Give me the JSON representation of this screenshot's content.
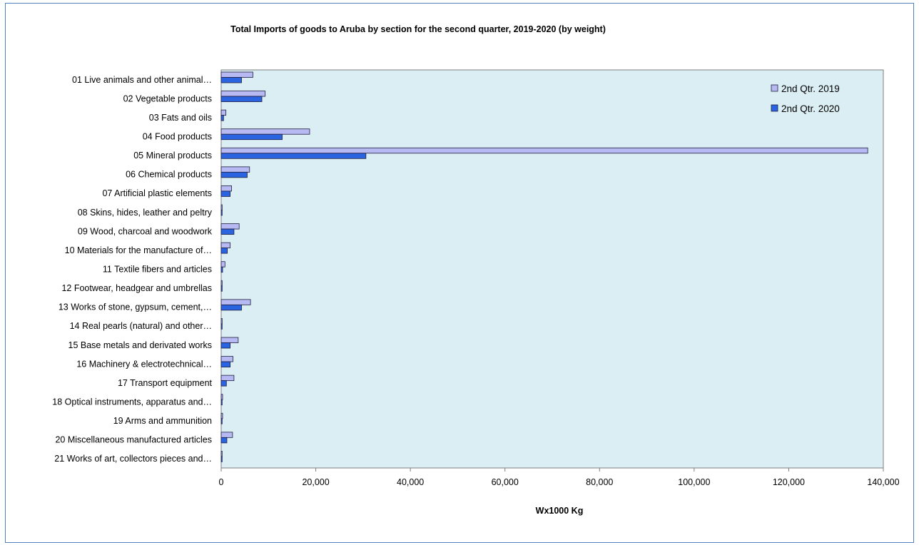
{
  "chart_data": {
    "type": "bar",
    "orientation": "horizontal",
    "title": "Total Imports of goods to Aruba by section for the second quarter, 2019-2020 (by weight)",
    "xlabel": "Wx1000 Kg",
    "ylabel": "",
    "xlim": [
      0,
      140000
    ],
    "xticks": [
      0,
      20000,
      40000,
      60000,
      80000,
      100000,
      120000,
      140000
    ],
    "xtick_labels": [
      "0",
      "20,000",
      "40,000",
      "60,000",
      "80,000",
      "100,000",
      "120,000",
      "140,000"
    ],
    "grid": false,
    "legend_position": "top-right",
    "categories": [
      "01 Live animals and other animal…",
      "02 Vegetable products",
      "03 Fats and oils",
      "04 Food products",
      "05 Mineral products",
      "06 Chemical products",
      "07 Artificial plastic elements",
      "08 Skins, hides, leather and peltry",
      "09 Wood, charcoal and woodwork",
      "10 Materials for the manufacture of…",
      "11 Textile fibers and articles",
      "12 Footwear, headgear and umbrellas",
      "13 Works of stone, gypsum, cement,…",
      "14 Real pearls (natural) and other…",
      "15 Base metals and derivated works",
      "16 Machinery & electrotechnical…",
      "17 Transport equipment",
      "18 Optical instruments, apparatus and…",
      "19 Arms and ammunition",
      "20 Miscellaneous manufactured articles",
      "21 Works of art, collectors pieces and…"
    ],
    "series": [
      {
        "name": "2nd Qtr. 2019",
        "color": "#b7b9f3",
        "values": [
          6700,
          9300,
          1000,
          18700,
          136700,
          6000,
          2200,
          200,
          3800,
          1900,
          800,
          200,
          6200,
          200,
          3600,
          2500,
          2700,
          300,
          300,
          2400,
          200
        ]
      },
      {
        "name": "2nd Qtr. 2020",
        "color": "#2b64e0",
        "values": [
          4300,
          8600,
          500,
          12900,
          30600,
          5500,
          1900,
          200,
          2700,
          1300,
          300,
          200,
          4300,
          200,
          1900,
          1900,
          1100,
          200,
          200,
          1200,
          200
        ]
      }
    ]
  },
  "colors": {
    "plot_background": "#daeef3",
    "plot_border": "#7f7f7f",
    "frame_border": "#4f81bd",
    "bar_outline": "#1f1f3f"
  }
}
